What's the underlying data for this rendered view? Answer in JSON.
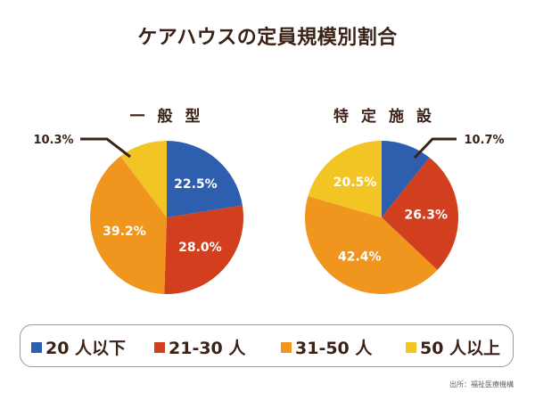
{
  "chart_data": [
    {
      "type": "pie",
      "title": "一般型",
      "categories": [
        "20人以下",
        "21-30人",
        "31-50人",
        "50人以上"
      ],
      "values": [
        22.5,
        28.0,
        39.2,
        10.3
      ],
      "labels": [
        "22.5%",
        "28.0%",
        "39.2%",
        "10.3%"
      ]
    },
    {
      "type": "pie",
      "title": "特定施設",
      "categories": [
        "20人以下",
        "21-30人",
        "31-50人",
        "50人以上"
      ],
      "values": [
        10.7,
        26.3,
        42.4,
        20.5
      ],
      "labels": [
        "10.7%",
        "26.3%",
        "42.4%",
        "20.5%"
      ]
    }
  ],
  "title": "ケアハウスの定員規模別割合",
  "legend": [
    {
      "label": "20 人以下",
      "color": "#2e5fae"
    },
    {
      "label": "21-30 人",
      "color": "#d13f1e"
    },
    {
      "label": "31-50 人",
      "color": "#f0951e"
    },
    {
      "label": "50 人以上",
      "color": "#f2c524"
    }
  ],
  "legend_position": "bottom",
  "source": "出所：福祉医療機構"
}
